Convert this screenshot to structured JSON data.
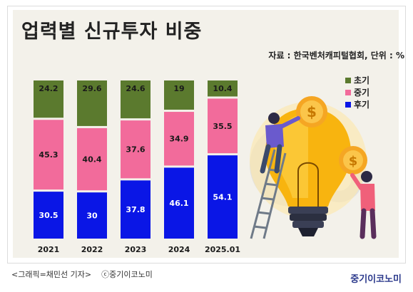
{
  "title": "업력별 신규투자 비중",
  "source": "자료 : 한국벤처캐피털협회, 단위 : %",
  "brand": "중기이코노미",
  "caption": {
    "credit": "<그래픽=채민선 기자>",
    "copyright": "ⓒ중기이코노미"
  },
  "colors": {
    "early": "#5b7a2e",
    "mid": "#f26b9b",
    "late": "#0a16e6"
  },
  "chart_data": {
    "type": "bar",
    "stacked": true,
    "percent_stacked": true,
    "categories": [
      "2021",
      "2022",
      "2023",
      "2024",
      "2025.01"
    ],
    "series": [
      {
        "name": "초기",
        "values": [
          24.2,
          29.6,
          24.6,
          19,
          10.4
        ],
        "color": "#5b7a2e"
      },
      {
        "name": "중기",
        "values": [
          45.3,
          40.4,
          37.6,
          34.9,
          35.5
        ],
        "color": "#f26b9b"
      },
      {
        "name": "후기",
        "values": [
          30.5,
          30,
          37.8,
          46.1,
          54.1
        ],
        "color": "#0a16e6"
      }
    ],
    "legend_position": "right",
    "grid": false
  }
}
